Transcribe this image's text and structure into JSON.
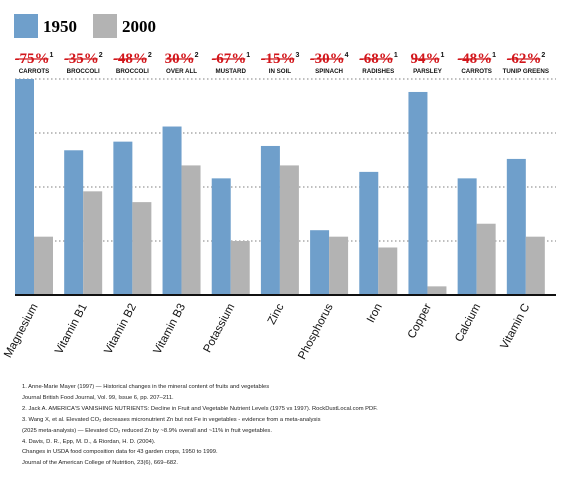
{
  "legend": [
    {
      "label": "1950",
      "color": "#6f9fcb"
    },
    {
      "label": "2000",
      "color": "#b3b3b3"
    }
  ],
  "chart_data": {
    "type": "bar",
    "categories": [
      "Magnesium",
      "Vitamin B1",
      "Vitamin B2",
      "Vitamin B3",
      "Potassium",
      "Zinc",
      "Phosphorus",
      "Iron",
      "Copper",
      "Calcium",
      "Vitamin C"
    ],
    "series": [
      {
        "name": "1950",
        "values": [
          100,
          67,
          71,
          78,
          54,
          69,
          30,
          57,
          94,
          54,
          63
        ]
      },
      {
        "name": "2000",
        "values": [
          27,
          48,
          43,
          60,
          25,
          60,
          27,
          22,
          4,
          33,
          27
        ]
      }
    ],
    "ylim": [
      0,
      100
    ],
    "grid": true,
    "legend_position": "top-left",
    "annotations": [
      {
        "pct": "-75%",
        "ref": "1",
        "caption": "CARROTS"
      },
      {
        "pct": "-35%",
        "ref": "2",
        "caption": "BROCCOLI"
      },
      {
        "pct": "-48%",
        "ref": "2",
        "caption": "BROCCOLI"
      },
      {
        "pct": "30%",
        "ref": "2",
        "caption": "OVER ALL"
      },
      {
        "pct": "-67%",
        "ref": "1",
        "caption": "MUSTARD"
      },
      {
        "pct": "-15%",
        "ref": "3",
        "caption": "IN SOIL"
      },
      {
        "pct": "-30%",
        "ref": "4",
        "caption": "SPINACH"
      },
      {
        "pct": "-68%",
        "ref": "1",
        "caption": "RADISHES"
      },
      {
        "pct": "94%",
        "ref": "1",
        "caption": "PARSLEY"
      },
      {
        "pct": "-48%",
        "ref": "1",
        "caption": "CARROTS"
      },
      {
        "pct": "-62%",
        "ref": "2",
        "caption": "TUNIP GREENS"
      }
    ],
    "colors": {
      "series_1950": "#6f9fcb",
      "series_2000": "#b3b3b3",
      "annotation": "#d2161b"
    }
  },
  "footnotes": [
    "1. Anne-Marie Mayer (1997) — Historical changes in the mineral content of fruits and vegetables",
    "Journal British Food Journal, Vol. 99, Issue 6, pp. 207–211.",
    "2. Jack A. AMERICA'S VANISHING NUTRIENTS: Decline in Fruit and Vegetable Nutrient Levels (1975 vs 1997). RockDustLocal.com PDF.",
    "3. Wang X, et al. Elevated CO₂ decreases micronutrient Zn but not Fe in vegetables - evidence from a meta-analysis",
    "(2025 meta-analysis) — Elevated CO₂ reduced Zn by ~8.9% overall and ~11% in fruit vegetables.",
    "4. Davis, D. R., Epp, M. D., & Riordan, H. D. (2004).",
    "Changes in USDA food composition data for 43 garden crops, 1950 to 1999.",
    "Journal of the American College of Nutrition, 23(6), 669–682."
  ]
}
